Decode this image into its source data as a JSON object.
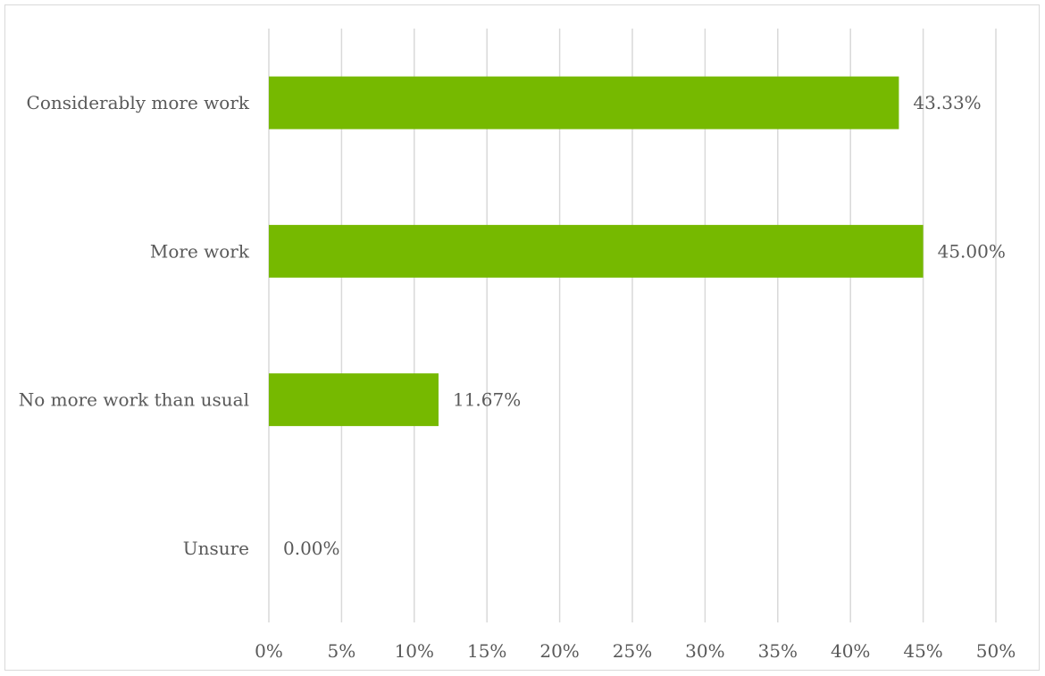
{
  "chart_data": {
    "type": "bar",
    "orientation": "horizontal",
    "categories": [
      "Considerably more work",
      "More work",
      "No more work than usual",
      "Unsure"
    ],
    "values": [
      43.33,
      45.0,
      11.67,
      0.0
    ],
    "data_labels": [
      "43.33%",
      "45.00%",
      "11.67%",
      "0.00%"
    ],
    "xlim": [
      0,
      50
    ],
    "x_ticks": [
      "0%",
      "5%",
      "10%",
      "15%",
      "20%",
      "25%",
      "30%",
      "35%",
      "40%",
      "45%",
      "50%"
    ],
    "title": "",
    "xlabel": "",
    "ylabel": "",
    "grid": "vertical",
    "legend": "none",
    "colors": {
      "bar": "#76b900",
      "gridline": "#d9d9d9",
      "text": "#595959"
    }
  }
}
